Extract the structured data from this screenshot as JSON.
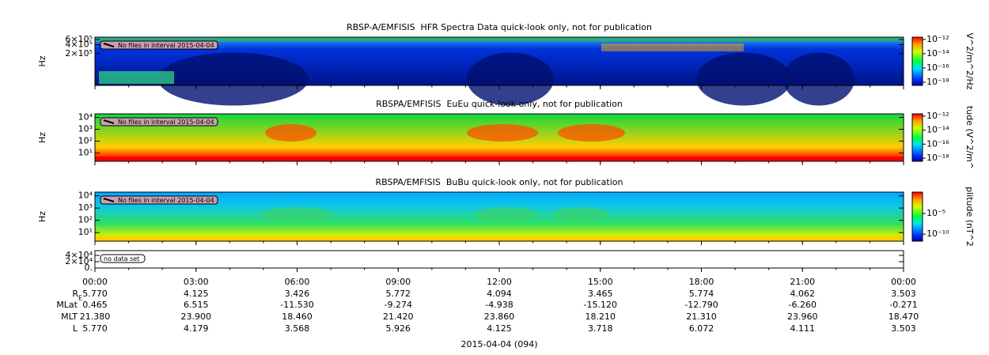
{
  "chart_data": [
    {
      "type": "spectrogram",
      "title": "RBSP-A/EMFISIS  HFR Spectra Data quick-look only, not for publication",
      "ylabel": "Hz",
      "ylog": true,
      "ylim": [
        17000,
        720000
      ],
      "yticks": [
        {
          "value": 600000,
          "label": "6×10⁵"
        },
        {
          "value": 400000,
          "label": "4×10⁵"
        },
        {
          "value": 200000,
          "label": "2×10⁵"
        }
      ],
      "annotation": "No files in interval 2015-04-04",
      "colorbar": {
        "label": "V^2/m^2/Hz",
        "log": true,
        "lim": [
          3.6e-19,
          2.1e-12
        ],
        "ticks": [
          {
            "value": 1e-12,
            "label": "10⁻¹²"
          },
          {
            "value": 1e-14,
            "label": "10⁻¹⁴"
          },
          {
            "value": 1e-16,
            "label": "10⁻¹⁶"
          },
          {
            "value": 1e-18,
            "label": "10⁻¹⁸"
          }
        ]
      }
    },
    {
      "type": "spectrogram",
      "title": "RBSPA/EMFISIS  EuEu quick-look only, not for publication",
      "ylabel": "Hz",
      "ylog": true,
      "ylim": [
        2,
        20000
      ],
      "yticks": [
        {
          "value": 10000,
          "label": "10⁴"
        },
        {
          "value": 1000,
          "label": "10³"
        },
        {
          "value": 100,
          "label": "10²"
        },
        {
          "value": 10,
          "label": "10¹"
        }
      ],
      "annotation": "No files in interval 2015-04-04",
      "colorbar": {
        "label": "tude (V^2/m^",
        "log": true,
        "lim": [
          3.6e-19,
          2.1e-12
        ],
        "ticks": [
          {
            "value": 1e-12,
            "label": "10⁻¹²"
          },
          {
            "value": 1e-14,
            "label": "10⁻¹⁴"
          },
          {
            "value": 1e-16,
            "label": "10⁻¹⁶"
          },
          {
            "value": 1e-18,
            "label": "10⁻¹⁸"
          }
        ]
      }
    },
    {
      "type": "spectrogram",
      "title": "RBSPA/EMFISIS  BuBu quick-look only, not for publication",
      "ylabel": "Hz",
      "ylog": true,
      "ylim": [
        2,
        20000
      ],
      "yticks": [
        {
          "value": 10000,
          "label": "10⁴"
        },
        {
          "value": 1000,
          "label": "10³"
        },
        {
          "value": 100,
          "label": "10²"
        },
        {
          "value": 10,
          "label": "10¹"
        }
      ],
      "annotation": "No files in interval 2015-04-04",
      "colorbar": {
        "label": "plitude (nT^2",
        "log": true,
        "lim": [
          2e-12,
          1.6
        ],
        "ticks": [
          {
            "value": 1e-05,
            "label": "10⁻⁵"
          },
          {
            "value": 1e-10,
            "label": "10⁻¹⁰"
          }
        ]
      }
    },
    {
      "type": "empty",
      "ylog": false,
      "ylim": [
        0,
        55000
      ],
      "yticks": [
        {
          "value": 40000,
          "label": "4×10⁴"
        },
        {
          "value": 20000,
          "label": "2×10⁴"
        },
        {
          "value": 0,
          "label": "0."
        }
      ],
      "annotation": "no data set"
    }
  ],
  "time_axis": {
    "xlim": [
      0,
      24
    ],
    "xticks": [
      {
        "value": 0,
        "label": "00:00"
      },
      {
        "value": 3,
        "label": "03:00"
      },
      {
        "value": 6,
        "label": "06:00"
      },
      {
        "value": 9,
        "label": "09:00"
      },
      {
        "value": 12,
        "label": "12:00"
      },
      {
        "value": 15,
        "label": "15:00"
      },
      {
        "value": 18,
        "label": "18:00"
      },
      {
        "value": 21,
        "label": "21:00"
      },
      {
        "value": 24,
        "label": "00:00"
      }
    ],
    "xlabel": "2015-04-04 (094)"
  },
  "ephemeris": [
    {
      "label": "R",
      "sub": "E",
      "values": [
        "5.770",
        "4.125",
        "3.426",
        "5.772",
        "4.094",
        "3.465",
        "5.774",
        "4.062",
        "3.503"
      ]
    },
    {
      "label": "MLat",
      "values": [
        "0.465",
        "6.515",
        "-11.530",
        "-9.274",
        "-4.938",
        "-15.120",
        "-12.790",
        "-6.260",
        "-0.271"
      ]
    },
    {
      "label": "MLT",
      "values": [
        "21.380",
        "23.900",
        "18.460",
        "21.420",
        "23.860",
        "18.210",
        "21.310",
        "23.960",
        "18.470"
      ]
    },
    {
      "label": "L",
      "values": [
        "5.770",
        "4.179",
        "3.568",
        "5.926",
        "4.125",
        "3.718",
        "6.072",
        "4.111",
        "3.503"
      ]
    }
  ]
}
